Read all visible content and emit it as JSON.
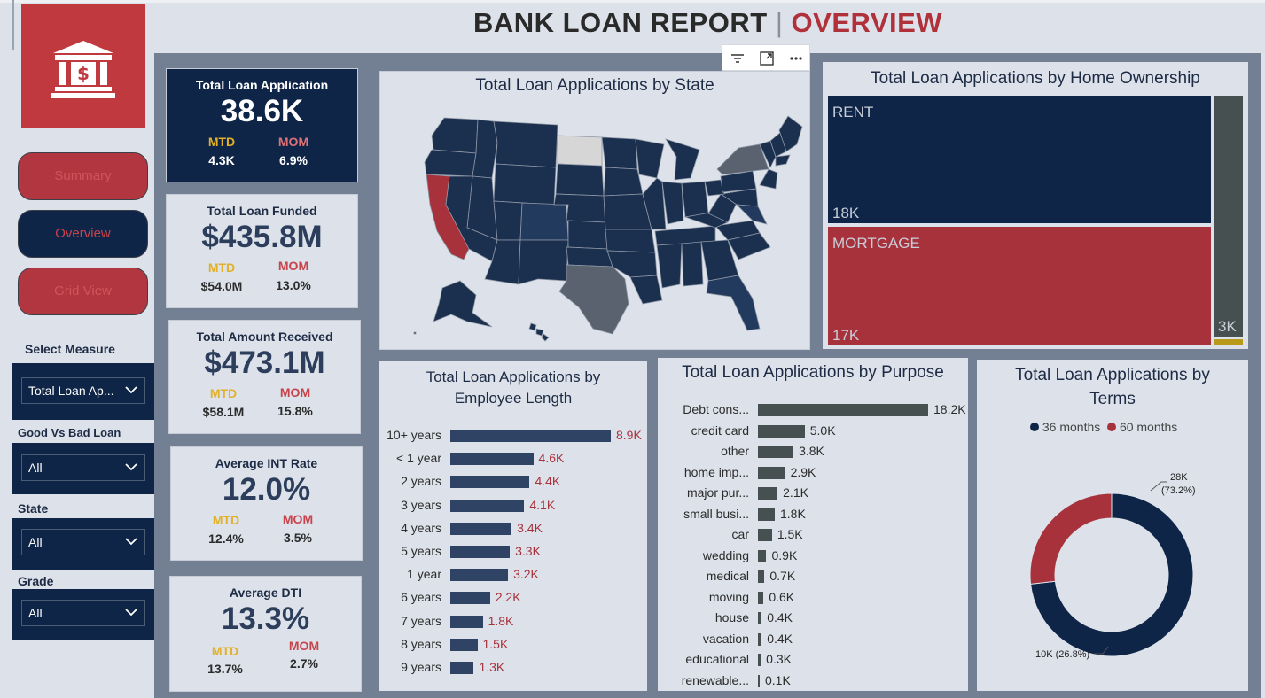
{
  "header": {
    "title_part1": "BANK LOAN REPORT",
    "separator": "|",
    "title_part2": "OVERVIEW"
  },
  "logo": {
    "icon": "bank-dollar-icon"
  },
  "nav": [
    {
      "label": "Summary",
      "state": "inactive"
    },
    {
      "label": "Overview",
      "state": "active"
    },
    {
      "label": "Grid View",
      "state": "inactive"
    }
  ],
  "filters": {
    "measure": {
      "label": "Select Measure",
      "value": "Total Loan Ap..."
    },
    "good_bad": {
      "label": "Good Vs Bad Loan",
      "value": "All"
    },
    "state": {
      "label": "State",
      "value": "All"
    },
    "grade": {
      "label": "Grade",
      "value": "All"
    }
  },
  "kpis": {
    "applications": {
      "title": "Total Loan Application",
      "value": "38.6K",
      "mtd_label": "MTD",
      "mtd": "4.3K",
      "mom_label": "MOM",
      "mom": "6.9%"
    },
    "funded": {
      "title": "Total Loan Funded",
      "value": "$435.8M",
      "mtd_label": "MTD",
      "mtd": "$54.0M",
      "mom_label": "MOM",
      "mom": "13.0%"
    },
    "received": {
      "title": "Total Amount Received",
      "value": "$473.1M",
      "mtd_label": "MTD",
      "mtd": "$58.1M",
      "mom_label": "MOM",
      "mom": "15.8%"
    },
    "int_rate": {
      "title": "Average INT Rate",
      "value": "12.0%",
      "mtd_label": "MTD",
      "mtd": "12.4%",
      "mom_label": "MOM",
      "mom": "3.5%"
    },
    "dti": {
      "title": "Average DTI",
      "value": "13.3%",
      "mtd_label": "MTD",
      "mtd": "13.7%",
      "mom_label": "MOM",
      "mom": "2.7%"
    }
  },
  "visual_toolbar": {
    "icons": [
      "filter-icon",
      "focus-mode-icon",
      "more-options-icon"
    ]
  },
  "map": {
    "title": "Total Loan Applications by State"
  },
  "colors": {
    "navy": "#0f2547",
    "red": "#a8323c",
    "slate": "#4a5561",
    "map_dark": "#1b2f4f",
    "map_gray": "#5a6270"
  },
  "chart_data": [
    {
      "type": "treemap",
      "title": "Total Loan Applications by Home Ownership",
      "items": [
        {
          "label": "RENT",
          "value": 18,
          "display": "18K"
        },
        {
          "label": "MORTGAGE",
          "value": 17,
          "display": "17K"
        },
        {
          "label": "",
          "value": 3,
          "display": "3K"
        },
        {
          "label": "",
          "value": 0.1,
          "display": ""
        }
      ]
    },
    {
      "type": "bar",
      "orientation": "horizontal",
      "title_line1": "Total Loan Applications by",
      "title_line2": "Employee Length",
      "categories": [
        "10+ years",
        "< 1 year",
        "2 years",
        "3 years",
        "4 years",
        "5 years",
        "1 year",
        "6 years",
        "7 years",
        "8 years",
        "9 years"
      ],
      "values": [
        8.9,
        4.6,
        4.4,
        4.1,
        3.4,
        3.3,
        3.2,
        2.2,
        1.8,
        1.5,
        1.3
      ],
      "labels": [
        "8.9K",
        "4.6K",
        "4.4K",
        "4.1K",
        "3.4K",
        "3.3K",
        "3.2K",
        "2.2K",
        "1.8K",
        "1.5K",
        "1.3K"
      ]
    },
    {
      "type": "bar",
      "orientation": "horizontal",
      "title": "Total Loan Applications by Purpose",
      "categories": [
        "Debt cons...",
        "credit card",
        "other",
        "home imp...",
        "major pur...",
        "small busi...",
        "car",
        "wedding",
        "medical",
        "moving",
        "house",
        "vacation",
        "educational",
        "renewable..."
      ],
      "values": [
        18.2,
        5.0,
        3.8,
        2.9,
        2.1,
        1.8,
        1.5,
        0.9,
        0.7,
        0.6,
        0.4,
        0.4,
        0.3,
        0.1
      ],
      "labels": [
        "18.2K",
        "5.0K",
        "3.8K",
        "2.9K",
        "2.1K",
        "1.8K",
        "1.5K",
        "0.9K",
        "0.7K",
        "0.6K",
        "0.4K",
        "0.4K",
        "0.3K",
        "0.1K"
      ]
    },
    {
      "type": "pie",
      "subtype": "donut",
      "title_line1": "Total Loan Applications by",
      "title_line2": "Terms",
      "legend": [
        "36 months",
        "60 months"
      ],
      "values": [
        73.2,
        26.8
      ],
      "labels": [
        "28K",
        "10K (26.8%)"
      ],
      "label_pct_36": "(73.2%)",
      "legend_position": "top"
    }
  ]
}
